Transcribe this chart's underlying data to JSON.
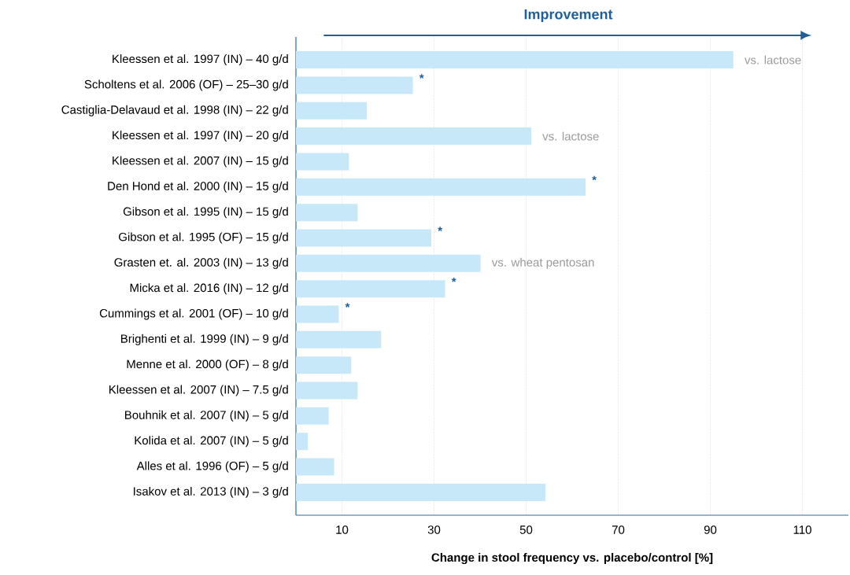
{
  "chart_data": {
    "type": "bar",
    "orientation": "horizontal",
    "xlabel": "Change in stool frequency vs. placebo/control [%]",
    "categories": [
      "Kleessen et al. 1997 (IN) – 40 g/d",
      "Scholtens et al. 2006 (OF) – 25–30 g/d",
      "Castiglia-Delavaud et al. 1998 (IN) – 22 g/d",
      "Kleessen et al. 1997 (IN) – 20 g/d",
      "Kleessen et al. 2007 (IN) – 15 g/d",
      "Den Hond et al. 2000 (IN) – 15 g/d",
      "Gibson et al. 1995 (IN) – 15 g/d",
      "Gibson et al. 1995 (OF) – 15 g/d",
      "Grasten et. al. 2003 (IN) – 13 g/d",
      "Micka et al. 2016 (IN) – 12 g/d",
      "Cummings et al. 2001 (OF) – 10 g/d",
      "Brighenti et al. 1999 (IN) – 9 g/d",
      "Menne et al. 2000 (OF) – 8 g/d",
      "Kleessen et al. 2007 (IN) – 7.5 g/d",
      "Bouhnik et al. 2007 (IN) – 5 g/d",
      "Kolida et al. 2007 (IN) – 5 g/d",
      "Alles et al. 1996 (OF) – 5 g/d",
      "Isakov et al. 2013 (IN) – 3 g/d"
    ],
    "values": [
      95,
      25.4,
      15.4,
      51.1,
      11.5,
      62.9,
      13.4,
      29.4,
      40.1,
      32.4,
      9.3,
      18.5,
      12,
      13.4,
      7.1,
      2.6,
      8.3,
      54.2
    ],
    "color": "#c6e8f8",
    "xlim": [
      0,
      120
    ],
    "xticks": [
      10,
      30,
      50,
      70,
      90,
      110
    ],
    "grid": "x",
    "annotations": [
      "Improvement",
      {
        "text": "vs. lactose",
        "x": 95,
        "y": "Kleessen et al. 1997 (IN) – 40 g/d"
      },
      {
        "text": "*",
        "x": 25.4,
        "y": "Scholtens et al. 2006 (OF) – 25–30 g/d"
      },
      {
        "text": "vs. lactose",
        "x": 51.1,
        "y": "Kleessen et al. 1997 (IN) – 20 g/d"
      },
      {
        "text": "*",
        "x": 62.9,
        "y": "Den Hond et al. 2000 (IN) – 15 g/d"
      },
      {
        "text": "*",
        "x": 29.4,
        "y": "Gibson et al. 1995 (OF) – 15 g/d"
      },
      {
        "text": "vs. wheat pentosan",
        "x": 40.1,
        "y": "Grasten et. al. 2003 (IN) – 13 g/d"
      },
      {
        "text": "*",
        "x": 32.4,
        "y": "Micka et al. 2016 (IN) – 12 g/d"
      },
      {
        "text": "*",
        "x": 9.3,
        "y": "Cummings et al. 2001 (OF) – 10 g/d"
      }
    ]
  }
}
